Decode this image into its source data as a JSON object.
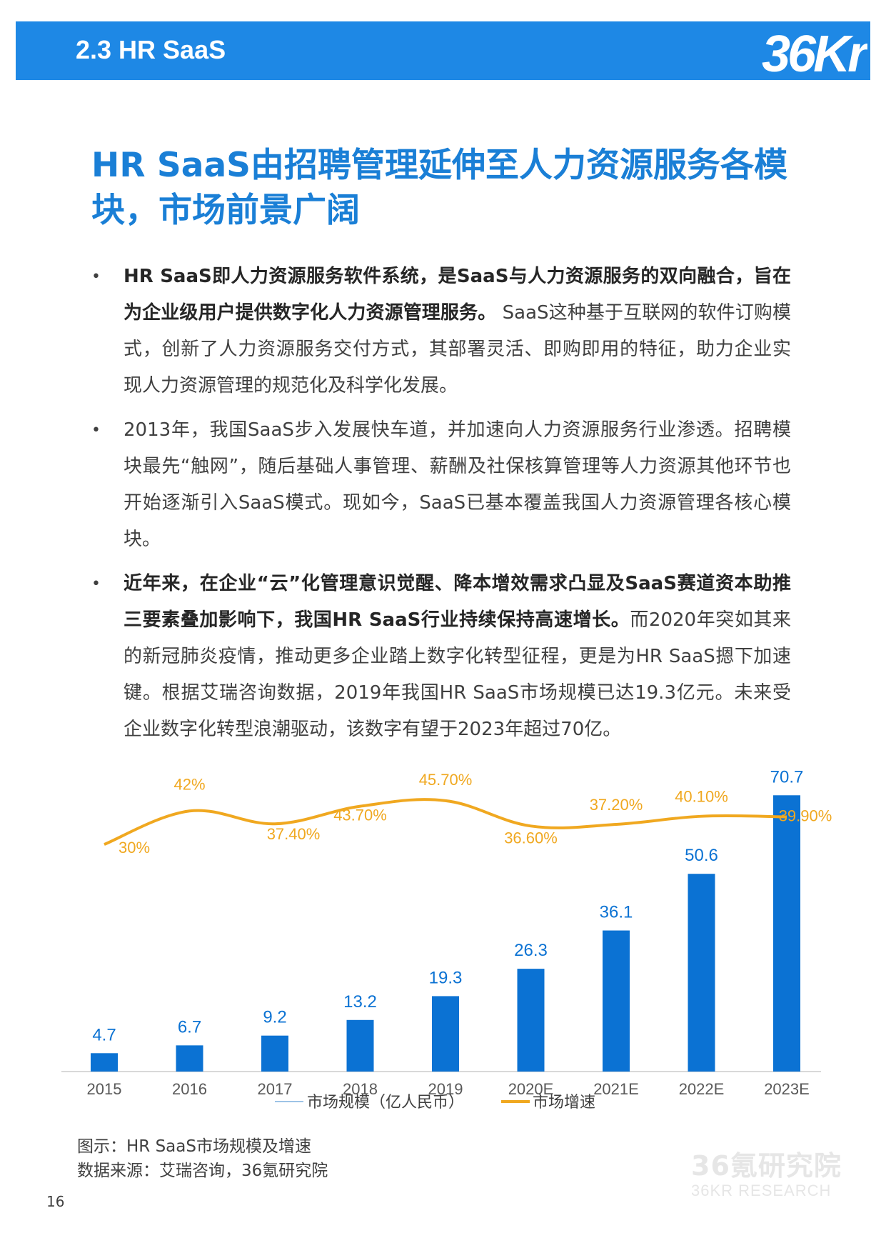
{
  "header": {
    "section": "2.3 HR SaaS",
    "logo_text": "36Kr"
  },
  "headline": "HR SaaS由招聘管理延伸至人力资源服务各模块，市场前景广阔",
  "bullets": [
    {
      "bold": "HR SaaS即人力资源服务软件系统，是SaaS与人力资源服务的双向融合，旨在为企业级用户提供数字化人力资源管理服务。",
      "text": " SaaS这种基于互联网的软件订购模式，创新了人力资源服务交付方式，其部署灵活、即购即用的特征，助力企业实现人力资源管理的规范化及科学化发展。"
    },
    {
      "bold": "",
      "text": "2013年，我国SaaS步入发展快车道，并加速向人力资源服务行业渗透。招聘模块最先“触网”，随后基础人事管理、薪酬及社保核算管理等人力资源其他环节也开始逐渐引入SaaS模式。现如今，SaaS已基本覆盖我国人力资源管理各核心模块。"
    },
    {
      "bold": "近年来，在企业“云”化管理意识觉醒、降本增效需求凸显及SaaS赛道资本助推三要素叠加影响下，我国HR SaaS行业持续保持高速增长。",
      "text": "而2020年突如其来的新冠肺炎疫情，推动更多企业踏上数字化转型征程，更是为HR SaaS摁下加速键。根据艾瑞咨询数据，2019年我国HR SaaS市场规模已达19.3亿元。未来受企业数字化转型浪潮驱动，该数字有望于2023年超过70亿。"
    }
  ],
  "chart_data": {
    "type": "bar",
    "categories": [
      "2015",
      "2016",
      "2017",
      "2018",
      "2019",
      "2020E",
      "2021E",
      "2022E",
      "2023E"
    ],
    "series": [
      {
        "name": "市场规模（亿人民币）",
        "type": "bar",
        "color": "#0b72d3",
        "values": [
          4.7,
          6.7,
          9.2,
          13.2,
          19.3,
          26.3,
          36.1,
          50.6,
          70.7
        ],
        "labels": [
          "4.7",
          "6.7",
          "9.2",
          "13.2",
          "19.3",
          "26.3",
          "36.1",
          "50.6",
          "70.7"
        ]
      },
      {
        "name": "市场增速",
        "type": "line",
        "color": "#f0a820",
        "values": [
          30,
          42,
          37.4,
          43.7,
          45.7,
          36.6,
          37.2,
          40.1,
          39.9
        ],
        "labels": [
          "30%",
          "42%",
          "37.40%",
          "43.70%",
          "45.70%",
          "36.60%",
          "37.20%",
          "40.10%",
          "39.90%"
        ]
      }
    ],
    "bar_ylim": [
      0,
      78
    ],
    "line_ylim": [
      10,
      49
    ],
    "legend_position": "bottom"
  },
  "caption": {
    "figure": "图示：HR SaaS市场规模及增速",
    "source": "数据来源：艾瑞咨询，36氪研究院"
  },
  "page_number": "16",
  "watermark": {
    "main": "36氪研究院",
    "sub": "36KR RESEARCH"
  }
}
